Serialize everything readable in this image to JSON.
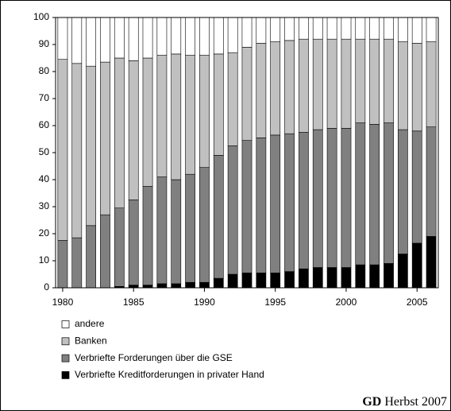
{
  "chart_data": {
    "type": "stacked_bar",
    "x": [
      1980,
      1981,
      1982,
      1983,
      1984,
      1985,
      1986,
      1987,
      1988,
      1989,
      1990,
      1991,
      1992,
      1993,
      1994,
      1995,
      1996,
      1997,
      1998,
      1999,
      2000,
      2001,
      2002,
      2003,
      2004,
      2005,
      2006
    ],
    "xlim": [
      1979.5,
      2006.5
    ],
    "xticks": [
      1980,
      1985,
      1990,
      1995,
      2000,
      2005
    ],
    "ylim": [
      0,
      100
    ],
    "yticks": [
      0,
      10,
      20,
      30,
      40,
      50,
      60,
      70,
      80,
      90,
      100
    ],
    "series": [
      {
        "name": "Verbriefte Kreditforderungen in privater Hand",
        "color": "#000000",
        "values": [
          0,
          0,
          0,
          0,
          0.5,
          1,
          1,
          1.5,
          1.5,
          2,
          2,
          3.5,
          5,
          5.5,
          5.5,
          5.5,
          6,
          7,
          7.5,
          7.5,
          7.5,
          8.5,
          8.5,
          9,
          12.5,
          16.5,
          19
        ]
      },
      {
        "name": "Verbriefte Forderungen  über die GSE",
        "color": "#808080",
        "values": [
          17.5,
          18.5,
          23,
          27,
          29,
          31.5,
          36.5,
          39.5,
          38.5,
          40,
          42.5,
          45.5,
          47.5,
          49,
          50,
          51,
          51,
          50.5,
          51,
          51.5,
          51.5,
          52.5,
          52,
          52,
          46,
          41.5,
          40.5
        ]
      },
      {
        "name": "Banken",
        "color": "#c0c0c0",
        "values": [
          67,
          64.5,
          59,
          56.5,
          55.5,
          51.5,
          47.5,
          45,
          46.5,
          44,
          41.5,
          37.5,
          34.5,
          34.5,
          35,
          34.5,
          34.5,
          34.5,
          33.5,
          33,
          33,
          31,
          31.5,
          31,
          32.5,
          32.5,
          31.5
        ]
      },
      {
        "name": "andere",
        "color": "#ffffff",
        "values": [
          15.5,
          17,
          18,
          16.5,
          15,
          16,
          15,
          14,
          13.5,
          14,
          14,
          13.5,
          13,
          11,
          9.5,
          9,
          8.5,
          8,
          8,
          8,
          8,
          8,
          8,
          8,
          9,
          9.5,
          9
        ]
      }
    ],
    "source_bold": "GD",
    "source": "Herbst 2007"
  }
}
